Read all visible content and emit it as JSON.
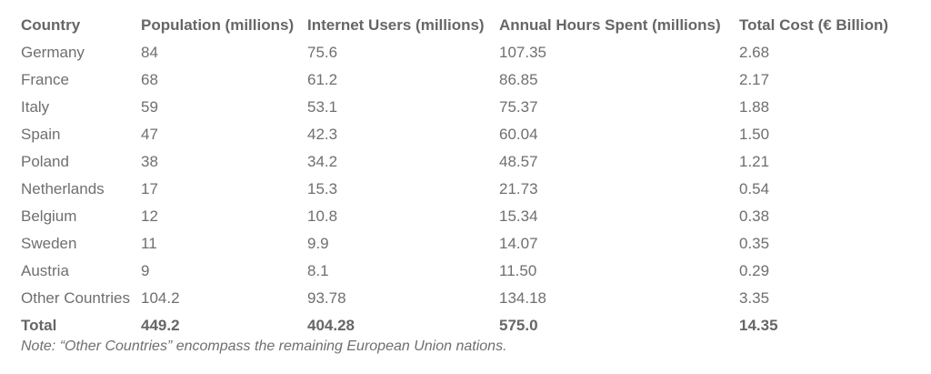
{
  "table": {
    "headers": [
      "Country",
      "Population (millions)",
      "Internet Users (millions)",
      "Annual Hours Spent (millions)",
      "Total Cost (€ Billion)"
    ],
    "rows": [
      [
        "Germany",
        "84",
        "75.6",
        "107.35",
        "2.68"
      ],
      [
        "France",
        "68",
        "61.2",
        "86.85",
        "2.17"
      ],
      [
        "Italy",
        "59",
        "53.1",
        "75.37",
        "1.88"
      ],
      [
        "Spain",
        "47",
        "42.3",
        "60.04",
        "1.50"
      ],
      [
        "Poland",
        "38",
        "34.2",
        "48.57",
        "1.21"
      ],
      [
        "Netherlands",
        "17",
        "15.3",
        "21.73",
        "0.54"
      ],
      [
        "Belgium",
        "12",
        "10.8",
        "15.34",
        "0.38"
      ],
      [
        "Sweden",
        "11",
        "9.9",
        "14.07",
        "0.35"
      ],
      [
        "Austria",
        "9",
        "8.1",
        "11.50",
        "0.29"
      ],
      [
        "Other Countries",
        "104.2",
        "93.78",
        "134.18",
        "3.35"
      ]
    ],
    "total": [
      "Total",
      "449.2",
      "404.28",
      "575.0",
      "14.35"
    ]
  },
  "note": "Note: “Other Countries” encompass the remaining European Union nations.",
  "colors": {
    "text": "#6f6f6f",
    "header_text": "#666666",
    "background": "#ffffff"
  }
}
